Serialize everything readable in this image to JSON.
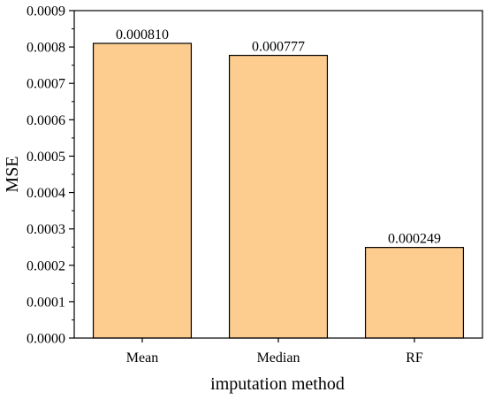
{
  "chart_data": {
    "type": "bar",
    "categories": [
      "Mean",
      "Median",
      "RF"
    ],
    "values": [
      0.00081,
      0.000777,
      0.000249
    ],
    "data_labels": [
      "0.000810",
      "0.000777",
      "0.000249"
    ],
    "xlabel": "imputation method",
    "ylabel": "MSE",
    "ylim": [
      0,
      0.0009
    ],
    "yticks": [
      0,
      0.0001,
      0.0002,
      0.0003,
      0.0004,
      0.0005,
      0.0006,
      0.0007,
      0.0008,
      0.0009
    ],
    "ytick_labels": [
      "0.0000",
      "0.0001",
      "0.0002",
      "0.0003",
      "0.0004",
      "0.0005",
      "0.0006",
      "0.0007",
      "0.0008",
      "0.0009"
    ],
    "grid": false,
    "legend": false,
    "bar_color": "#fdcc8f",
    "bar_edge_color": "#000000"
  }
}
